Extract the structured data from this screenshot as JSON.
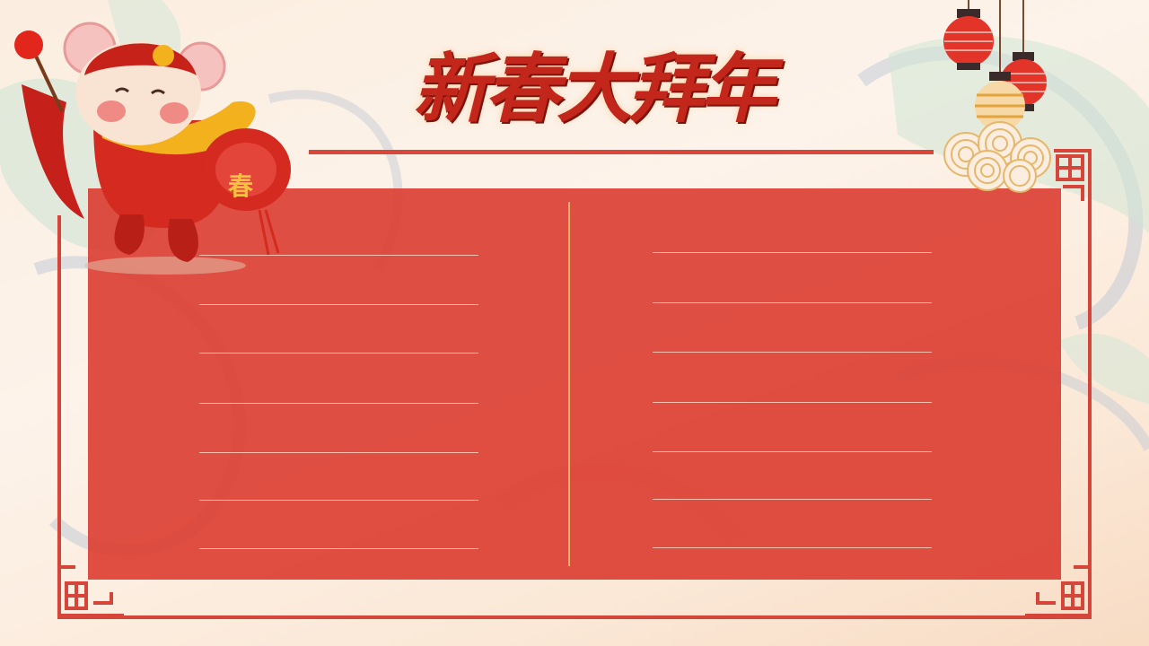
{
  "title": "新春大拜年",
  "colors": {
    "primary_red": "#d6453a",
    "panel_red": "#dc3c30",
    "gold": "#e8b463",
    "background": "#fbeee0"
  },
  "mascot": {
    "badge_text": "春"
  },
  "writing_lines": {
    "left_column_count": 7,
    "right_column_count": 7
  }
}
